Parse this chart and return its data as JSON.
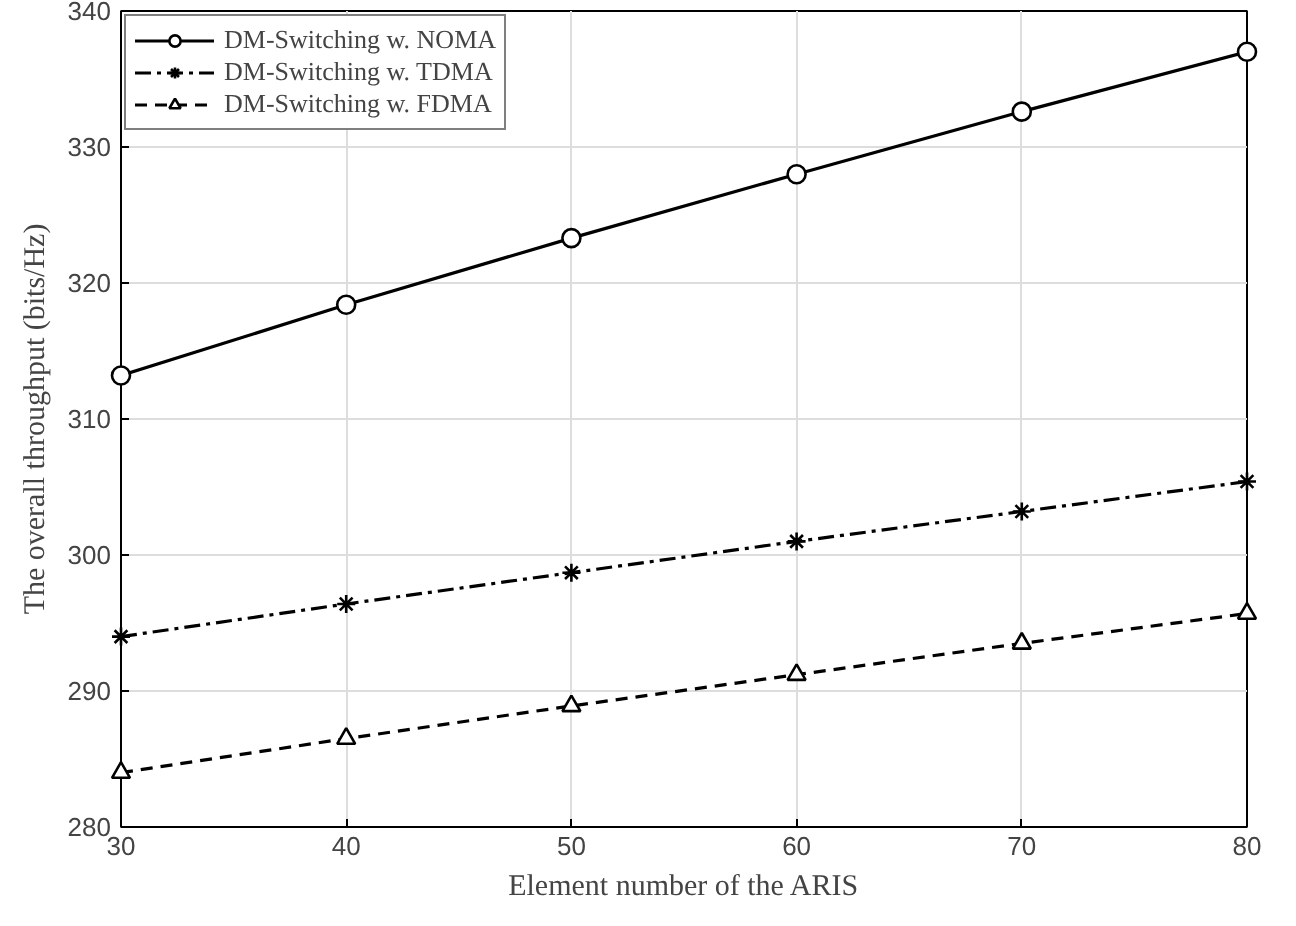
{
  "chart_data": {
    "type": "line",
    "xlabel": "Element number of the ARIS",
    "ylabel": "The overall throughput (bits/Hz)",
    "x": [
      30,
      40,
      50,
      60,
      70,
      80
    ],
    "series": [
      {
        "name": "DM-Switching w. NOMA",
        "color": "#000000",
        "marker": "circle",
        "line_style": "solid",
        "values": [
          313.2,
          318.4,
          323.3,
          328.0,
          332.6,
          337.0
        ]
      },
      {
        "name": "DM-Switching w. TDMA",
        "color": "#000000",
        "marker": "cross",
        "line_style": "dashdot",
        "values": [
          294.0,
          296.4,
          298.7,
          301.0,
          303.2,
          305.4
        ]
      },
      {
        "name": "DM-Switching w. FDMA",
        "color": "#000000",
        "marker": "triangle",
        "line_style": "dashed",
        "values": [
          284.0,
          286.5,
          288.9,
          291.2,
          293.5,
          295.7
        ]
      }
    ],
    "xlim": [
      30,
      80
    ],
    "xticks": [
      30,
      40,
      50,
      60,
      70,
      80
    ],
    "ylim": [
      280,
      340
    ],
    "yticks": [
      280,
      290,
      300,
      310,
      320,
      330,
      340
    ],
    "grid": true,
    "legend": "top left"
  }
}
